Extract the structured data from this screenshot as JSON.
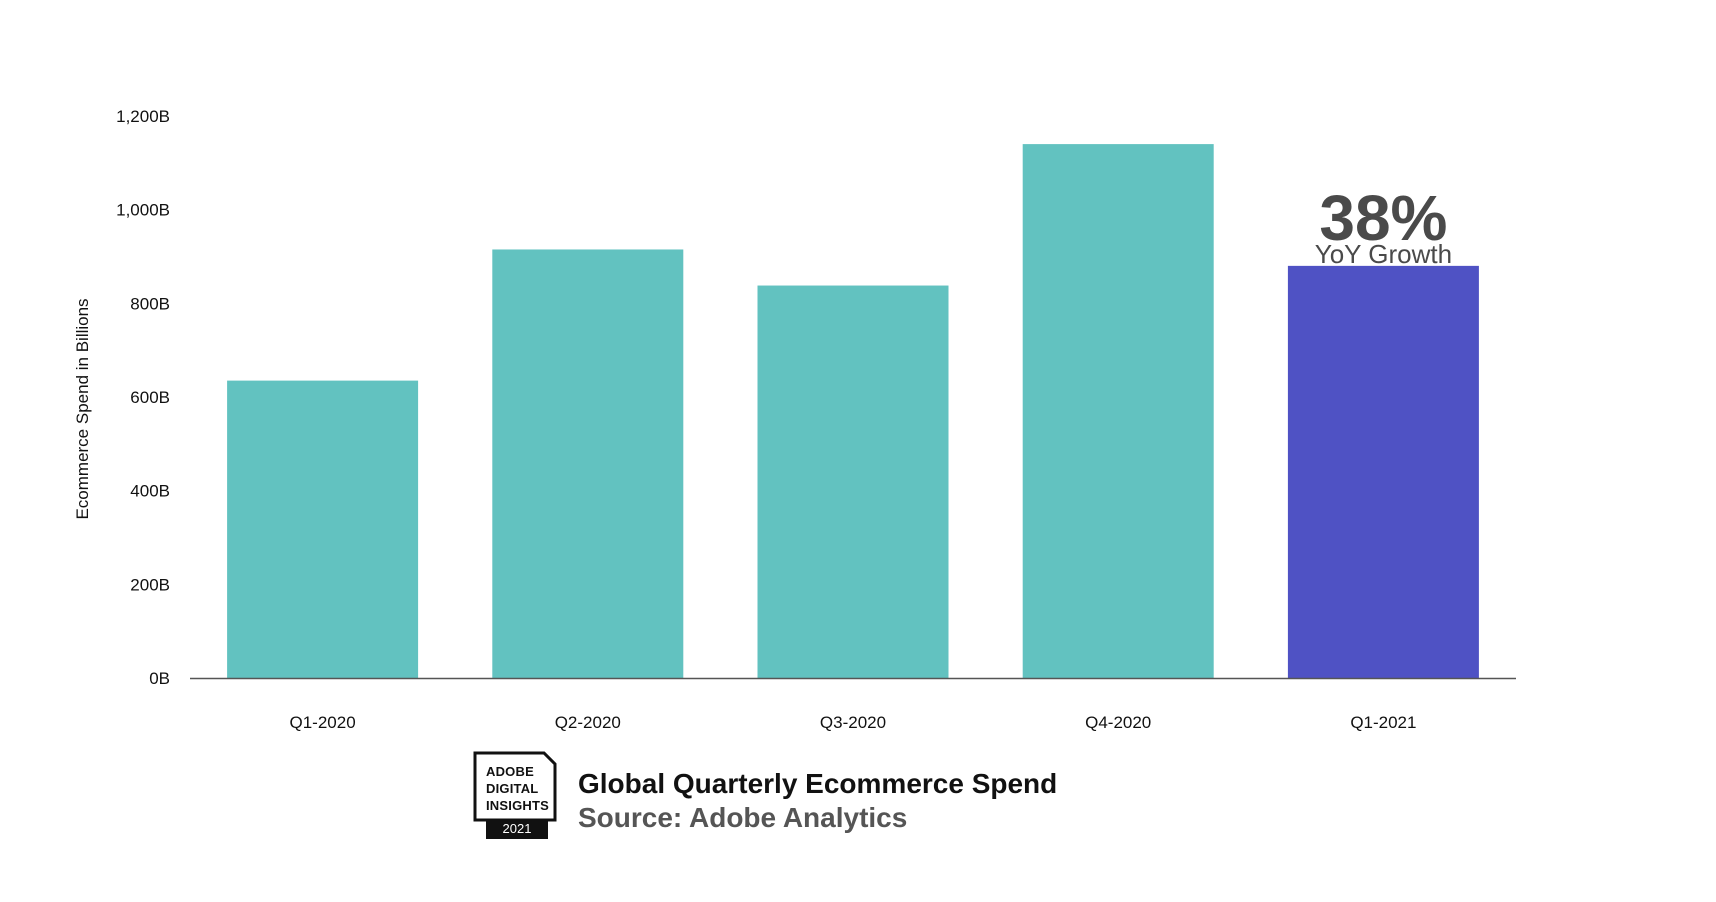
{
  "chart_data": {
    "type": "bar",
    "categories": [
      "Q1-2020",
      "Q2-2020",
      "Q3-2020",
      "Q4-2020",
      "Q1-2021"
    ],
    "values": [
      635,
      915,
      838,
      1140,
      880
    ],
    "ylabel": "Ecommerce Spend in Billions",
    "xlabel": "",
    "ylim": [
      0,
      1200
    ],
    "yticks": [
      0,
      200,
      400,
      600,
      800,
      1000,
      1200
    ],
    "ytick_labels": [
      "0B",
      "200B",
      "400B",
      "600B",
      "800B",
      "1,000B",
      "1,200B"
    ],
    "grid": false,
    "colors": {
      "default_bar": "#62c2c0",
      "highlight_bar": "#4f52c4",
      "axis": "#555555",
      "annotation": "#4a4a4a"
    },
    "highlight_index": 4,
    "annotation": {
      "category": "Q1-2021",
      "value": "38%",
      "label": "YoY Growth"
    }
  },
  "footer": {
    "badge_lines": [
      "ADOBE",
      "DIGITAL",
      "INSIGHTS"
    ],
    "badge_year": "2021",
    "title": "Global Quarterly Ecommerce Spend",
    "source": "Source: Adobe Analytics"
  }
}
